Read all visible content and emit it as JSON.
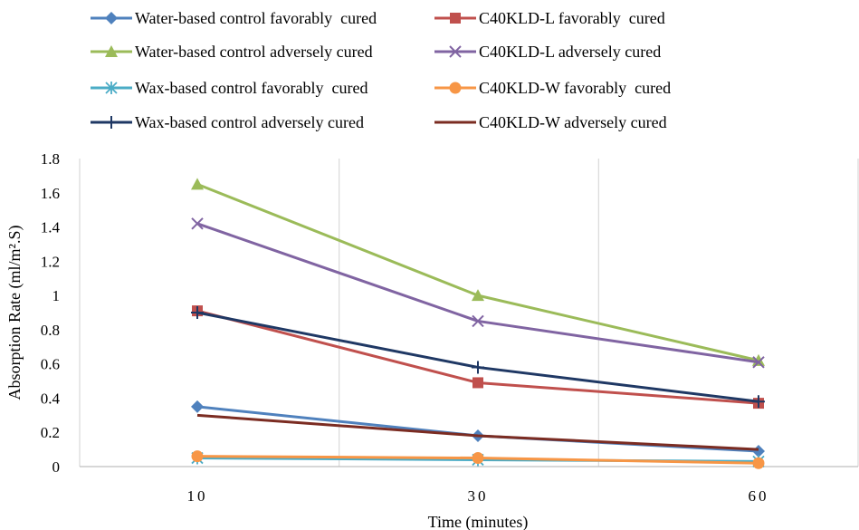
{
  "chart_data": {
    "type": "line",
    "title": "",
    "xlabel": "Time (minutes)",
    "ylabel": "Absorption Rate (ml/m².S)",
    "categories": [
      "10",
      "30",
      "60"
    ],
    "ylim": [
      0,
      1.8
    ],
    "yticks": [
      "0",
      "0.2",
      "0.4",
      "0.6",
      "0.8",
      "1",
      "1.2",
      "1.4",
      "1.6",
      "1.8"
    ],
    "grid": "vertical",
    "legend_position": "top",
    "series": [
      {
        "name": "Water-based control favorably  cured",
        "values": [
          0.35,
          0.18,
          0.09
        ],
        "color": "#4F81BD",
        "marker": "diamond"
      },
      {
        "name": "C40KLD-L favorably  cured",
        "values": [
          0.91,
          0.49,
          0.37
        ],
        "color": "#C0504D",
        "marker": "square"
      },
      {
        "name": "Water-based control adversely cured",
        "values": [
          1.65,
          1.0,
          0.62
        ],
        "color": "#9BBB59",
        "marker": "triangle"
      },
      {
        "name": "C40KLD-L adversely cured",
        "values": [
          1.42,
          0.85,
          0.61
        ],
        "color": "#8064A2",
        "marker": "x"
      },
      {
        "name": "Wax-based control favorably  cured",
        "values": [
          0.05,
          0.04,
          0.03
        ],
        "color": "#4BACC6",
        "marker": "star"
      },
      {
        "name": "C40KLD-W favorably  cured",
        "values": [
          0.06,
          0.05,
          0.02
        ],
        "color": "#F79646",
        "marker": "circle"
      },
      {
        "name": "Wax-based control adversely cured",
        "values": [
          0.9,
          0.58,
          0.38
        ],
        "color": "#1F3864",
        "marker": "plus"
      },
      {
        "name": "C40KLD-W adversely cured",
        "values": [
          0.3,
          0.18,
          0.1
        ],
        "color": "#7B2C22",
        "marker": "none"
      }
    ]
  }
}
